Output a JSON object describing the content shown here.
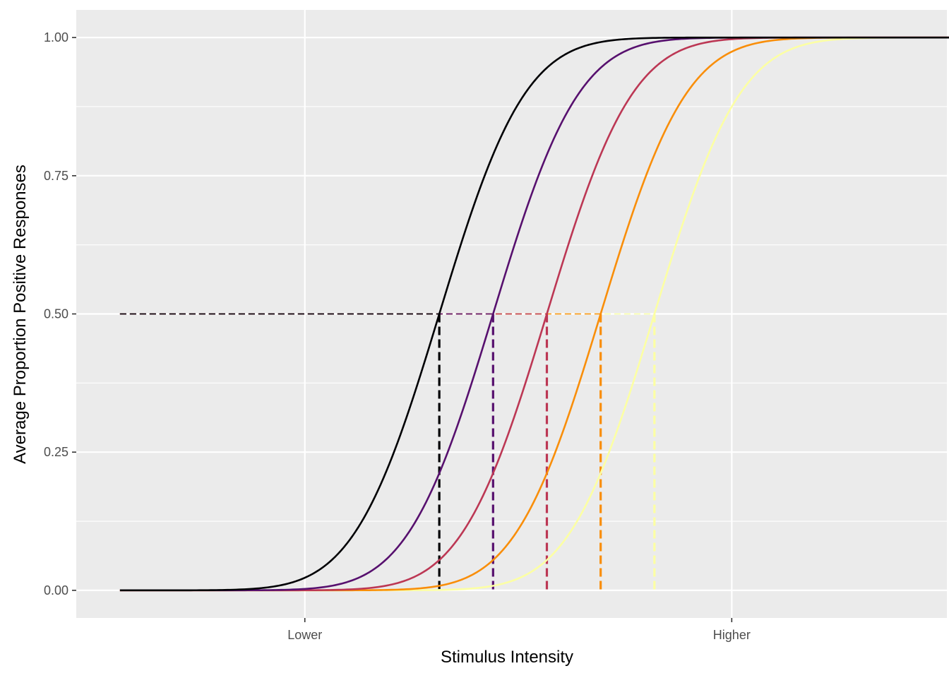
{
  "chart_data": {
    "type": "line",
    "title": "",
    "xlabel": "Stimulus Intensity",
    "ylabel": "Average Proportion Positive Responses",
    "xlim": [
      -6.25,
      6.7
    ],
    "ylim": [
      -0.05,
      1.05
    ],
    "x_ticks": [
      {
        "value": -2.85,
        "label": "Lower"
      },
      {
        "value": 3.5,
        "label": "Higher"
      }
    ],
    "y_ticks": [
      {
        "value": 0.0,
        "label": "0.00"
      },
      {
        "value": 0.25,
        "label": "0.25"
      },
      {
        "value": 0.5,
        "label": "0.50"
      },
      {
        "value": 0.75,
        "label": "0.75"
      },
      {
        "value": 1.0,
        "label": "1.00"
      }
    ],
    "y_minor_ticks": [
      0.125,
      0.375,
      0.625,
      0.875
    ],
    "grid": true,
    "legend": "none",
    "x_range": [
      -5.6,
      7.05
    ],
    "threshold_level": 0.5,
    "series": [
      {
        "threshold": -0.85,
        "slope": 1.0,
        "color": "#000004"
      },
      {
        "threshold": -0.05,
        "slope": 1.0,
        "color": "#57106E"
      },
      {
        "threshold": 0.75,
        "slope": 1.0,
        "color": "#BC3754"
      },
      {
        "threshold": 1.55,
        "slope": 1.0,
        "color": "#F98E09"
      },
      {
        "threshold": 2.35,
        "slope": 1.0,
        "color": "#FCFFA4"
      }
    ]
  }
}
